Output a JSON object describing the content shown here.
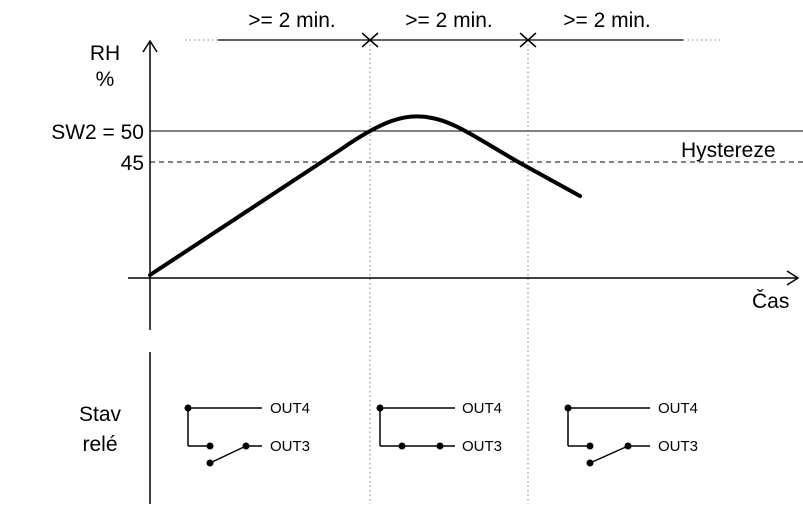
{
  "intervals": [
    ">= 2 min.",
    ">= 2 min.",
    ">= 2 min."
  ],
  "y_axis": {
    "label_line1": "RH",
    "label_line2": "%"
  },
  "x_axis": {
    "label": "Čas"
  },
  "thresholds": {
    "sw2_label": "SW2 = 50",
    "hyst_value_label": "45",
    "hysteresis_label": "Hystereze"
  },
  "relay": {
    "label_line1": "Stav",
    "label_line2": "relé",
    "groups": [
      {
        "top": "OUT4",
        "bottom": "OUT3",
        "state": "OUT4"
      },
      {
        "top": "OUT4",
        "bottom": "OUT3",
        "state": "OUT3"
      },
      {
        "top": "OUT4",
        "bottom": "OUT3",
        "state": "OUT4"
      }
    ]
  },
  "colors": {
    "line": "#000000",
    "guide": "#808080"
  }
}
